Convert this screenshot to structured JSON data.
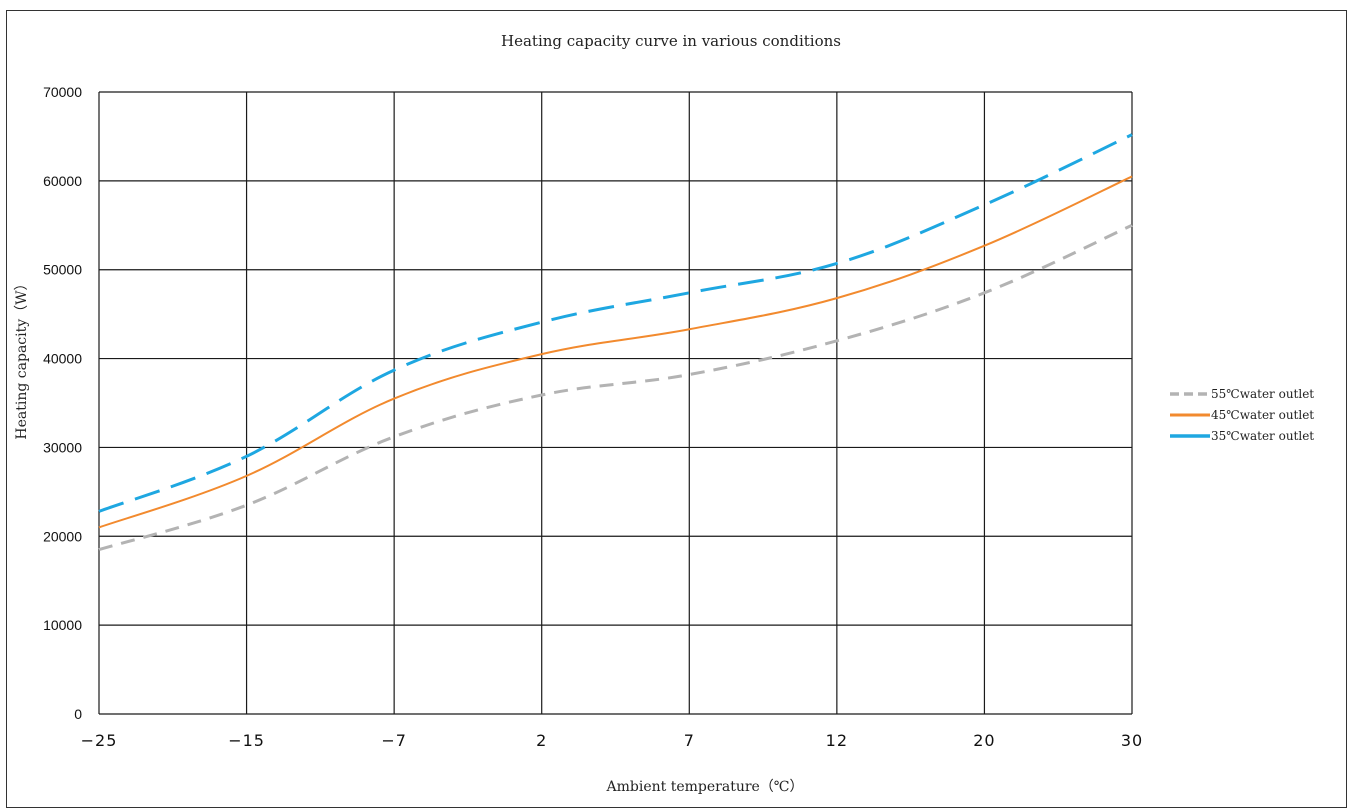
{
  "chart_data": {
    "type": "line",
    "title": "Heating capacity curve in various conditions",
    "xlabel": "Ambient temperature（℃）",
    "ylabel": "Heating capacity（W）",
    "x_scale": "categorical (equally spaced ticks)",
    "categories": [
      "-25",
      "-15",
      "-7",
      "2",
      "7",
      "12",
      "20",
      "30"
    ],
    "ylim": [
      0,
      70000
    ],
    "yticks": [
      0,
      10000,
      20000,
      30000,
      40000,
      50000,
      60000,
      70000
    ],
    "grid": true,
    "legend_position": "right",
    "series": [
      {
        "name": "55℃water outlet",
        "color": "#B3B3B3",
        "dash": "dashed",
        "values": [
          18500,
          23500,
          31200,
          35900,
          38200,
          42000,
          47400,
          55000
        ]
      },
      {
        "name": "45℃water outlet",
        "color": "#F28A2E",
        "dash": "solid",
        "values": [
          21000,
          26800,
          35500,
          40500,
          43300,
          46800,
          52700,
          60500
        ]
      },
      {
        "name": "35℃water outlet",
        "color": "#1EA7E1",
        "dash": "dashed",
        "values": [
          22800,
          29000,
          38700,
          44100,
          47400,
          50700,
          57300,
          65200
        ]
      }
    ]
  }
}
